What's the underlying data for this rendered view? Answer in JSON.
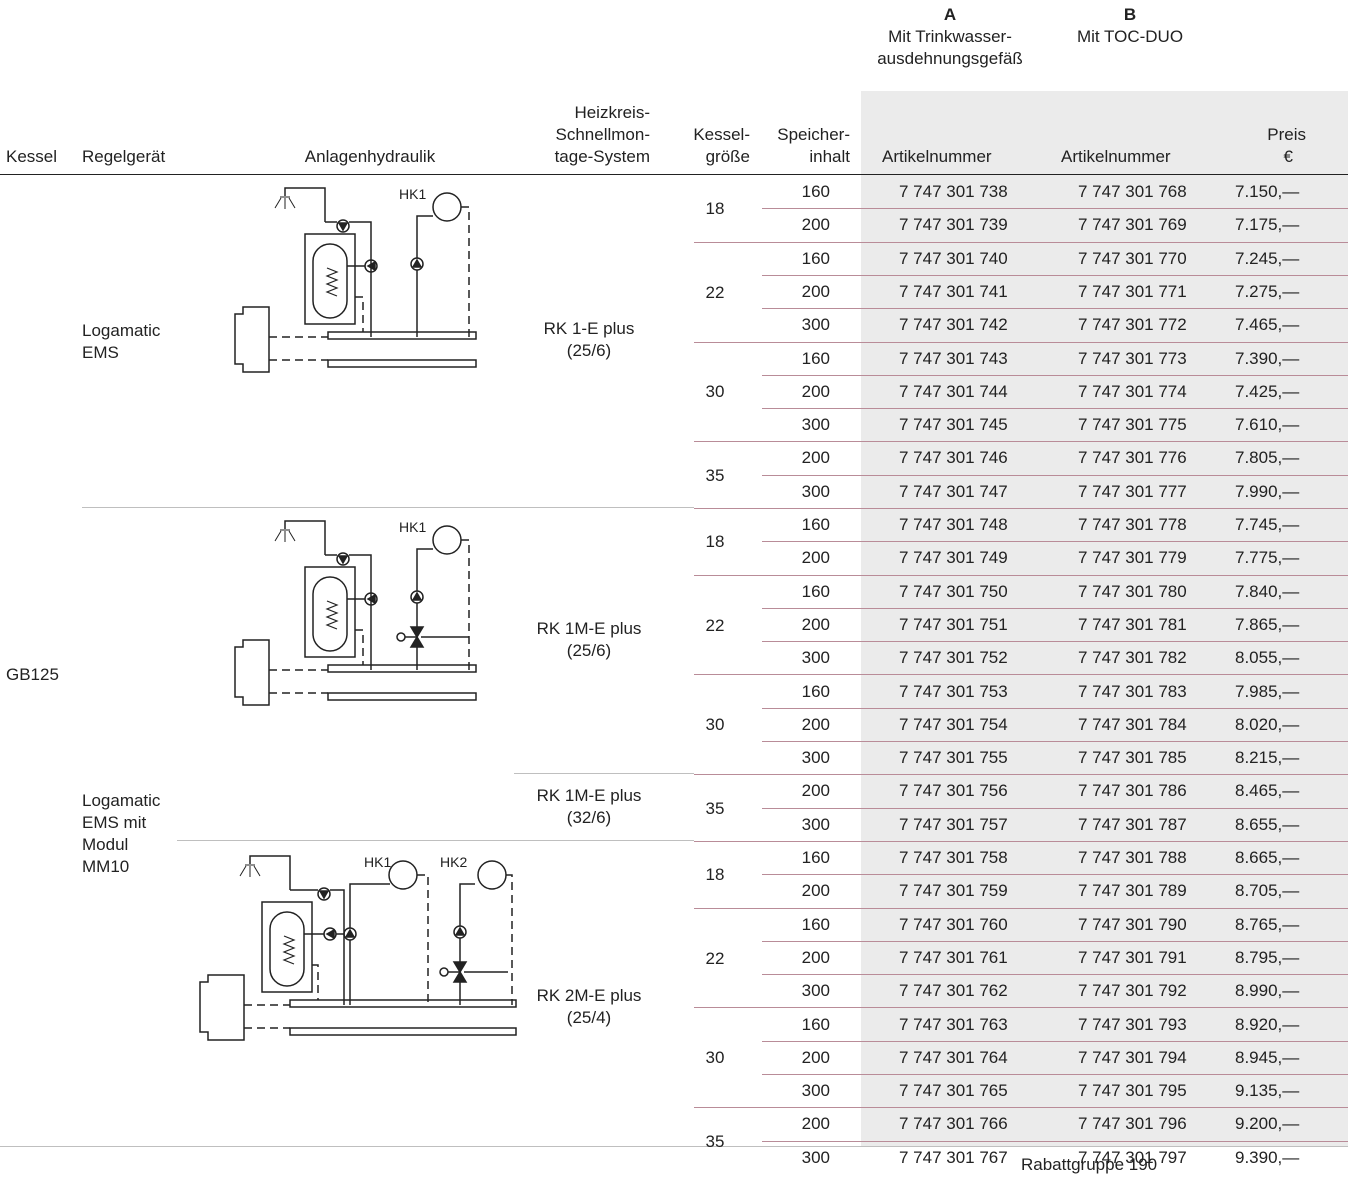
{
  "columns_top": {
    "a": {
      "letter": "A",
      "line1": "Mit Trinkwasser-",
      "line2": "ausdehnungsgefäß"
    },
    "b": {
      "letter": "B",
      "line1": "Mit TOC-DUO"
    }
  },
  "headers": {
    "kessel": "Kessel",
    "regelgeraet": "Regelgerät",
    "hydraulik": "Anlagenhydraulik",
    "heizkreis": [
      "Heizkreis-",
      "Schnellmon-",
      "tage-System"
    ],
    "kesselgroesse": [
      "Kessel-",
      "größe"
    ],
    "speicher": [
      "Speicher-",
      "inhalt"
    ],
    "art_a": "Artikelnummer",
    "art_b": "Artikelnummer",
    "preis": [
      "Preis",
      "€"
    ]
  },
  "kessel_name": "GB125",
  "regel": {
    "ems": [
      "Logamatic",
      "EMS"
    ],
    "mm10": [
      "Logamatic",
      "EMS mit",
      "Modul",
      "MM10"
    ]
  },
  "schematic_labels": {
    "hk1": "HK1",
    "hk2": "HK2"
  },
  "rk": [
    [
      "RK 1-E plus",
      "(25/6)"
    ],
    [
      "RK 1M-E plus",
      "(25/6)"
    ],
    [
      "RK 1M-E plus",
      "(32/6)"
    ],
    [
      "RK 2M-E plus",
      "(25/4)"
    ]
  ],
  "sizes": [
    "18",
    "22",
    "30",
    "35",
    "18",
    "22",
    "30",
    "35",
    "18",
    "22",
    "30",
    "35"
  ],
  "rows": [
    {
      "v": "160",
      "a": "7 747 301 738",
      "b": "7 747 301 768",
      "p": "7.150,—"
    },
    {
      "v": "200",
      "a": "7 747 301 739",
      "b": "7 747 301 769",
      "p": "7.175,—"
    },
    {
      "v": "160",
      "a": "7 747 301 740",
      "b": "7 747 301 770",
      "p": "7.245,—"
    },
    {
      "v": "200",
      "a": "7 747 301 741",
      "b": "7 747 301 771",
      "p": "7.275,—"
    },
    {
      "v": "300",
      "a": "7 747 301 742",
      "b": "7 747 301 772",
      "p": "7.465,—"
    },
    {
      "v": "160",
      "a": "7 747 301 743",
      "b": "7 747 301 773",
      "p": "7.390,—"
    },
    {
      "v": "200",
      "a": "7 747 301 744",
      "b": "7 747 301 774",
      "p": "7.425,—"
    },
    {
      "v": "300",
      "a": "7 747 301 745",
      "b": "7 747 301 775",
      "p": "7.610,—"
    },
    {
      "v": "200",
      "a": "7 747 301 746",
      "b": "7 747 301 776",
      "p": "7.805,—"
    },
    {
      "v": "300",
      "a": "7 747 301 747",
      "b": "7 747 301 777",
      "p": "7.990,—"
    },
    {
      "v": "160",
      "a": "7 747 301 748",
      "b": "7 747 301 778",
      "p": "7.745,—"
    },
    {
      "v": "200",
      "a": "7 747 301 749",
      "b": "7 747 301 779",
      "p": "7.775,—"
    },
    {
      "v": "160",
      "a": "7 747 301 750",
      "b": "7 747 301 780",
      "p": "7.840,—"
    },
    {
      "v": "200",
      "a": "7 747 301 751",
      "b": "7 747 301 781",
      "p": "7.865,—"
    },
    {
      "v": "300",
      "a": "7 747 301 752",
      "b": "7 747 301 782",
      "p": "8.055,—"
    },
    {
      "v": "160",
      "a": "7 747 301 753",
      "b": "7 747 301 783",
      "p": "7.985,—"
    },
    {
      "v": "200",
      "a": "7 747 301 754",
      "b": "7 747 301 784",
      "p": "8.020,—"
    },
    {
      "v": "300",
      "a": "7 747 301 755",
      "b": "7 747 301 785",
      "p": "8.215,—"
    },
    {
      "v": "200",
      "a": "7 747 301 756",
      "b": "7 747 301 786",
      "p": "8.465,—"
    },
    {
      "v": "300",
      "a": "7 747 301 757",
      "b": "7 747 301 787",
      "p": "8.655,—"
    },
    {
      "v": "160",
      "a": "7 747 301 758",
      "b": "7 747 301 788",
      "p": "8.665,—"
    },
    {
      "v": "200",
      "a": "7 747 301 759",
      "b": "7 747 301 789",
      "p": "8.705,—"
    },
    {
      "v": "160",
      "a": "7 747 301 760",
      "b": "7 747 301 790",
      "p": "8.765,—"
    },
    {
      "v": "200",
      "a": "7 747 301 761",
      "b": "7 747 301 791",
      "p": "8.795,—"
    },
    {
      "v": "300",
      "a": "7 747 301 762",
      "b": "7 747 301 792",
      "p": "8.990,—"
    },
    {
      "v": "160",
      "a": "7 747 301 763",
      "b": "7 747 301 793",
      "p": "8.920,—"
    },
    {
      "v": "200",
      "a": "7 747 301 764",
      "b": "7 747 301 794",
      "p": "8.945,—"
    },
    {
      "v": "300",
      "a": "7 747 301 765",
      "b": "7 747 301 795",
      "p": "9.135,—"
    },
    {
      "v": "200",
      "a": "7 747 301 766",
      "b": "7 747 301 796",
      "p": "9.200,—"
    },
    {
      "v": "300",
      "a": "7 747 301 767",
      "b": "7 747 301 797",
      "p": "9.390,—"
    }
  ],
  "footer": "Rabattgruppe 190"
}
